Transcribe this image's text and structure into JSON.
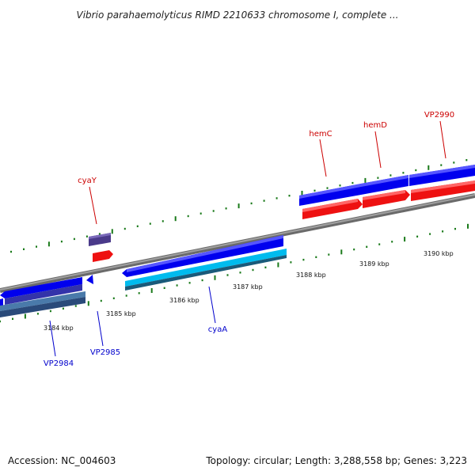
{
  "header": {
    "title": "Vibrio parahaemolyticus RIMD 2210633 chromosome I, complete ..."
  },
  "footer": {
    "accession": "Accession: NC_004603",
    "summary": "Topology: circular; Length: 3,288,558 bp; Genes: 3,223"
  },
  "colors": {
    "forward_gene": "#0000ee",
    "forward_gene_light": "#3366ff",
    "reverse_gene": "#ee1111",
    "label_red": "#cc0000",
    "label_blue": "#0000cc",
    "backbone": "#8a8a8a",
    "tick_green": "#1a7a1a",
    "purple_gene": "#4a3a8a",
    "cyan_gene": "#00bbee",
    "steel_gene": "#4a7aaa"
  },
  "scale": {
    "ticks": [
      "3184 kbp",
      "3185 kbp",
      "3186 kbp",
      "3187 kbp",
      "3188 kbp",
      "3189 kbp",
      "3190 kbp"
    ]
  },
  "genes": {
    "labels_top": [
      "cyaY",
      "hemC",
      "hemD",
      "VP2990"
    ],
    "labels_bottom": [
      "VP2984",
      "VP2985",
      "cyaA"
    ]
  }
}
